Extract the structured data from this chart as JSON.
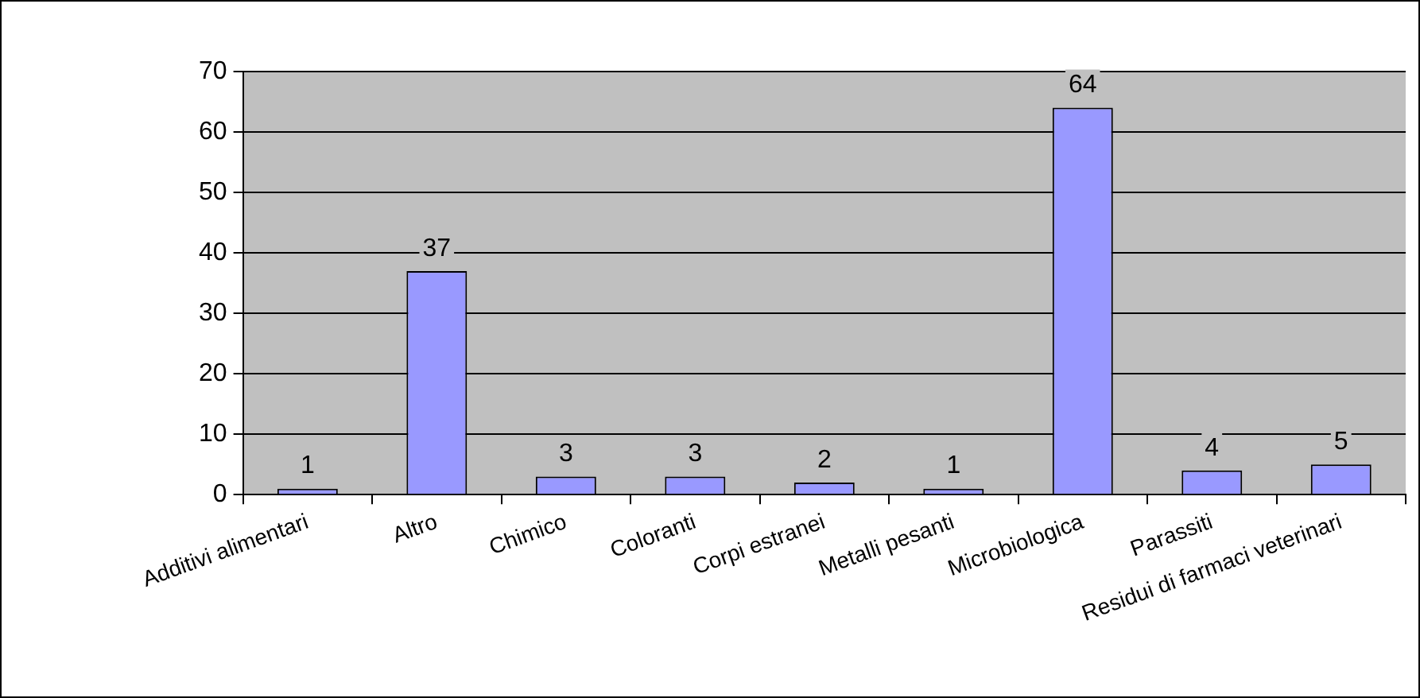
{
  "chart_data": {
    "type": "bar",
    "categories": [
      "Additivi alimentari",
      "Altro",
      "Chimico",
      "Coloranti",
      "Corpi estranei",
      "Metalli pesanti",
      "Microbiologica",
      "Parassiti",
      "Residui di farmaci veterinari"
    ],
    "values": [
      1,
      37,
      3,
      3,
      2,
      1,
      64,
      4,
      5
    ],
    "color": "#9999ff",
    "ylim": [
      0,
      70
    ],
    "yticks": [
      0,
      10,
      20,
      30,
      40,
      50,
      60,
      70
    ],
    "grid": "y",
    "legend": false,
    "data_labels": true
  }
}
